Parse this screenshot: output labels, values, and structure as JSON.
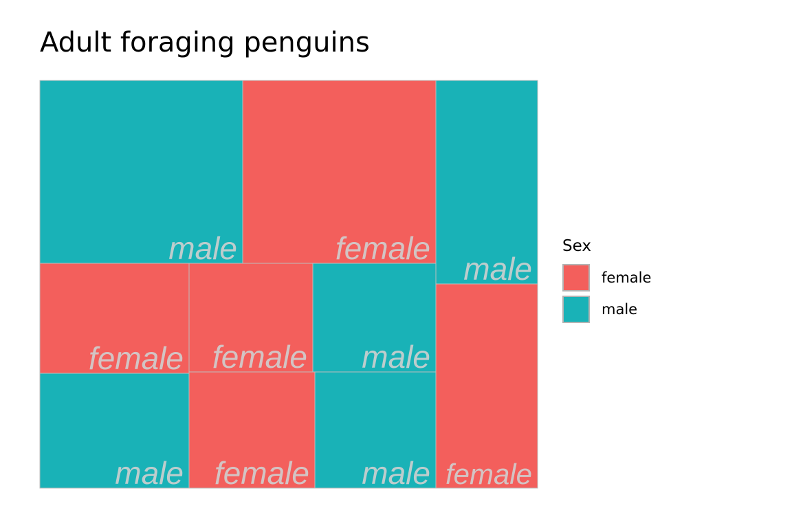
{
  "chart_data": {
    "type": "treemap",
    "title": "Adult foraging penguins",
    "fill_by": "Sex",
    "legend": {
      "title": "Sex",
      "position": "right",
      "entries": [
        {
          "label": "female",
          "color": "#F35F5C"
        },
        {
          "label": "male",
          "color": "#19B2B7"
        }
      ]
    },
    "tiles": [
      {
        "label": "male",
        "sex": "male"
      },
      {
        "label": "female",
        "sex": "female"
      },
      {
        "label": "male",
        "sex": "male"
      },
      {
        "label": "female",
        "sex": "female"
      },
      {
        "label": "female",
        "sex": "female"
      },
      {
        "label": "male",
        "sex": "male"
      },
      {
        "label": "male",
        "sex": "male"
      },
      {
        "label": "female",
        "sex": "female"
      },
      {
        "label": "male",
        "sex": "male"
      },
      {
        "label": "female",
        "sex": "female"
      }
    ]
  }
}
